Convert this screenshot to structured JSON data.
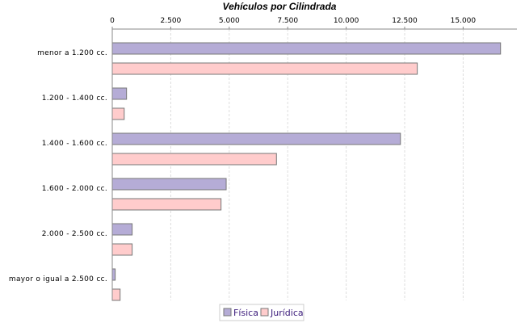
{
  "chart_data": {
    "type": "bar",
    "orientation": "horizontal",
    "title": "Vehículos por Cilindrada",
    "categories": [
      "menor a 1.200 cc.",
      "1.200 - 1.400 cc.",
      "1.400 - 1.600 cc.",
      "1.600 - 2.000 cc.",
      "2.000 - 2.500 cc.",
      "mayor o igual a 2.500 cc."
    ],
    "series": [
      {
        "name": "Física",
        "color": "#b5acd6",
        "values": [
          16600,
          610,
          12320,
          4870,
          850,
          125
        ]
      },
      {
        "name": "Jurídica",
        "color": "#ffcccc",
        "values": [
          13040,
          510,
          7020,
          4650,
          850,
          335
        ]
      }
    ],
    "xlim": [
      0,
      17300
    ],
    "ticks": [
      0,
      2500,
      5000,
      7500,
      10000,
      12500,
      15000
    ],
    "tick_labels": [
      "0",
      "2.500",
      "5.000",
      "7.500",
      "10.000",
      "12.500",
      "15.000"
    ],
    "axis_position": "top",
    "grid": true,
    "legend": "bottom"
  }
}
